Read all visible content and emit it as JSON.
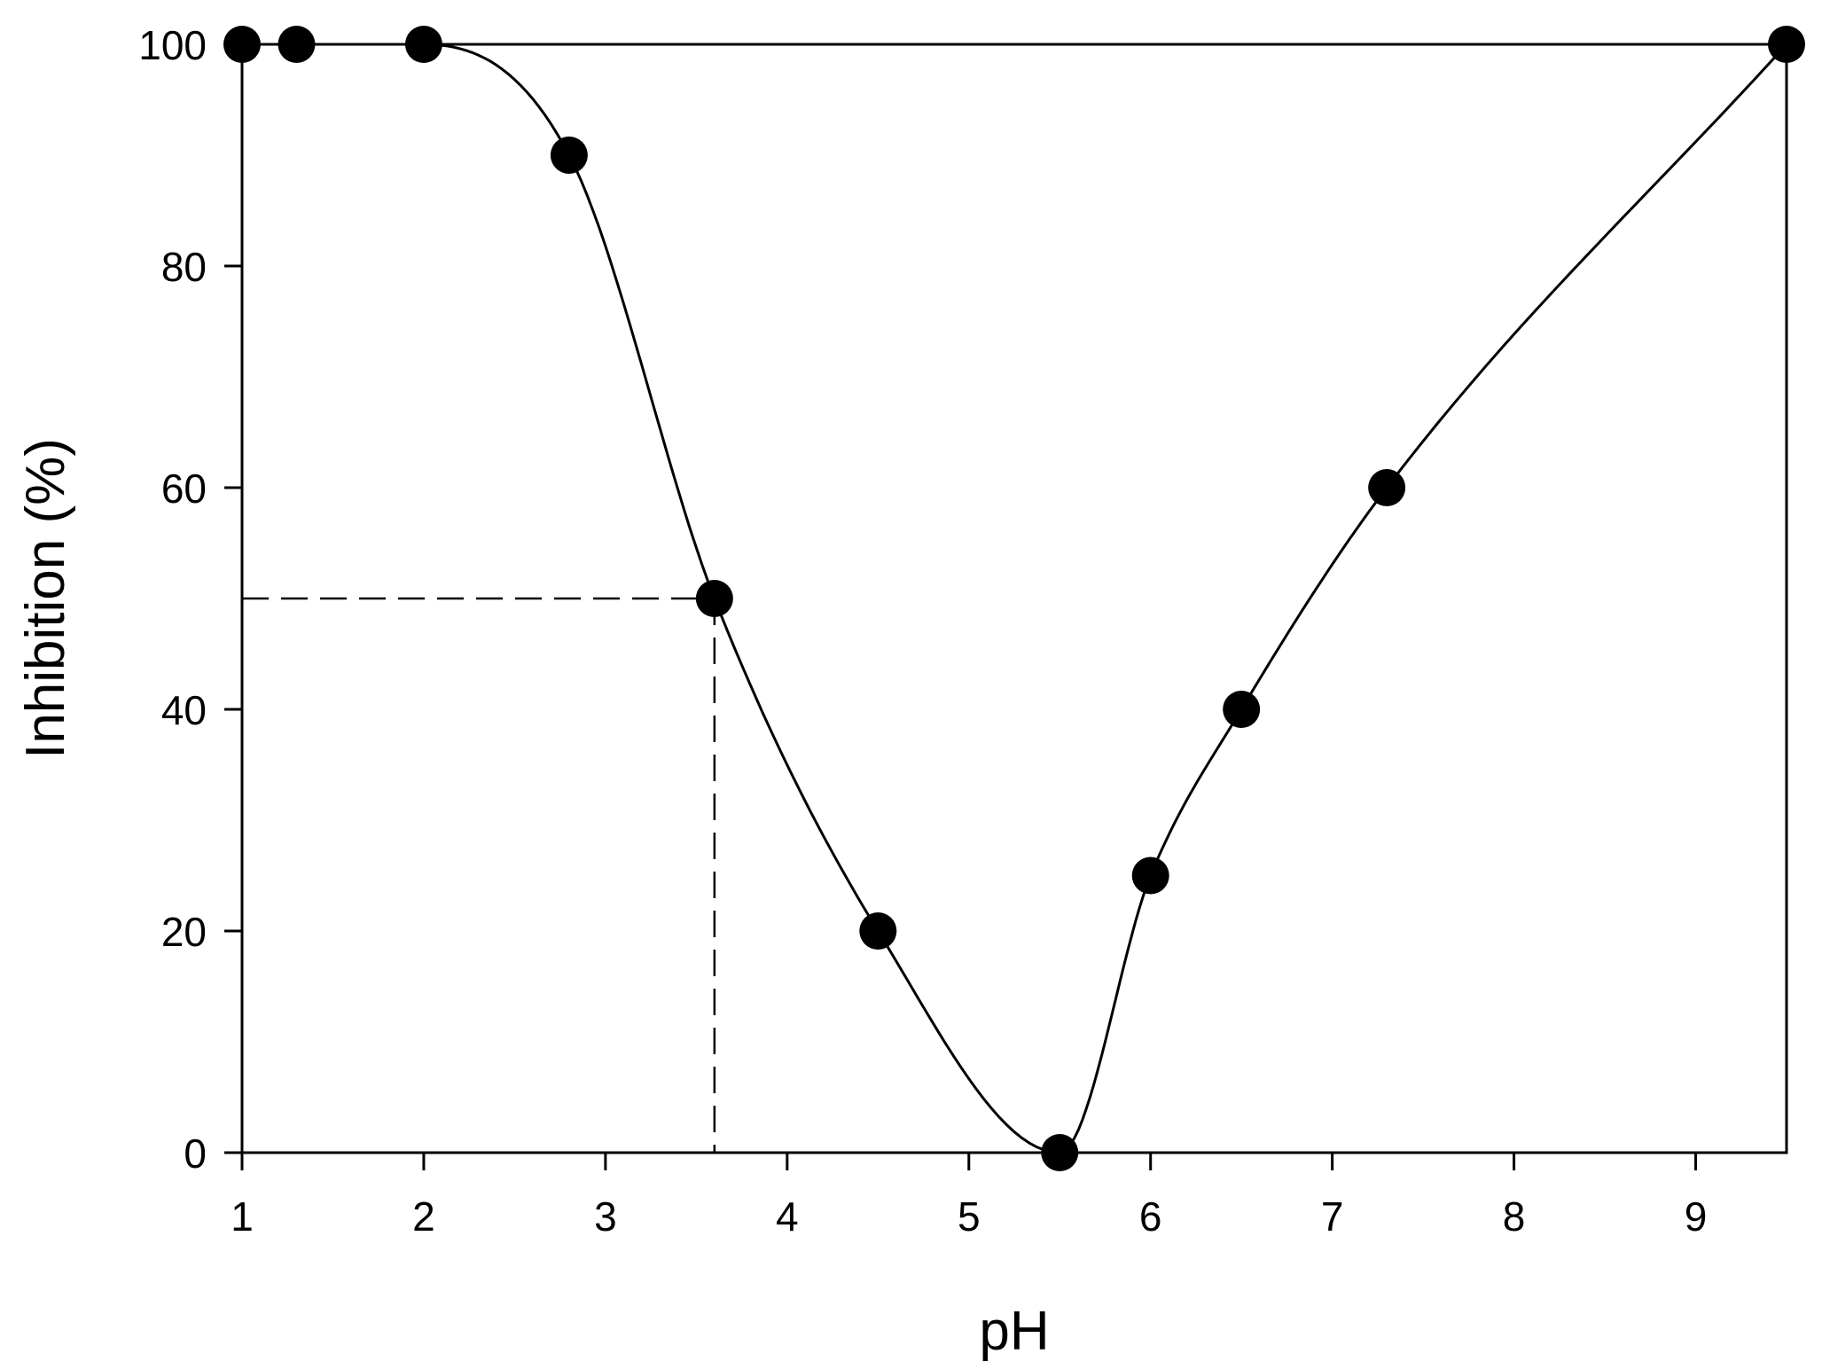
{
  "chart_data": {
    "type": "scatter",
    "title": "",
    "xlabel": "pH",
    "ylabel": "Inhibition (%)",
    "xlim": [
      1,
      9.5
    ],
    "ylim": [
      0,
      100
    ],
    "x_ticks": [
      1,
      2,
      3,
      4,
      5,
      6,
      7,
      8,
      9
    ],
    "y_ticks": [
      0,
      20,
      40,
      60,
      80,
      100
    ],
    "grid": false,
    "legend": "none",
    "series": [
      {
        "x": [
          1,
          1.3,
          2,
          2.8,
          3.6,
          4.5,
          5.5,
          6,
          6.5,
          7.3,
          9.5
        ],
        "y": [
          100,
          100,
          100,
          90,
          50,
          20,
          0,
          25,
          40,
          60,
          100
        ],
        "marker": "filled-circle",
        "line": "smooth"
      }
    ],
    "reference_lines": [
      {
        "style": "dashed",
        "x": 3.6,
        "y": 50
      }
    ],
    "colors": {
      "line": "#000000",
      "marker": "#000000",
      "axis": "#000000",
      "background": "#ffffff"
    }
  }
}
